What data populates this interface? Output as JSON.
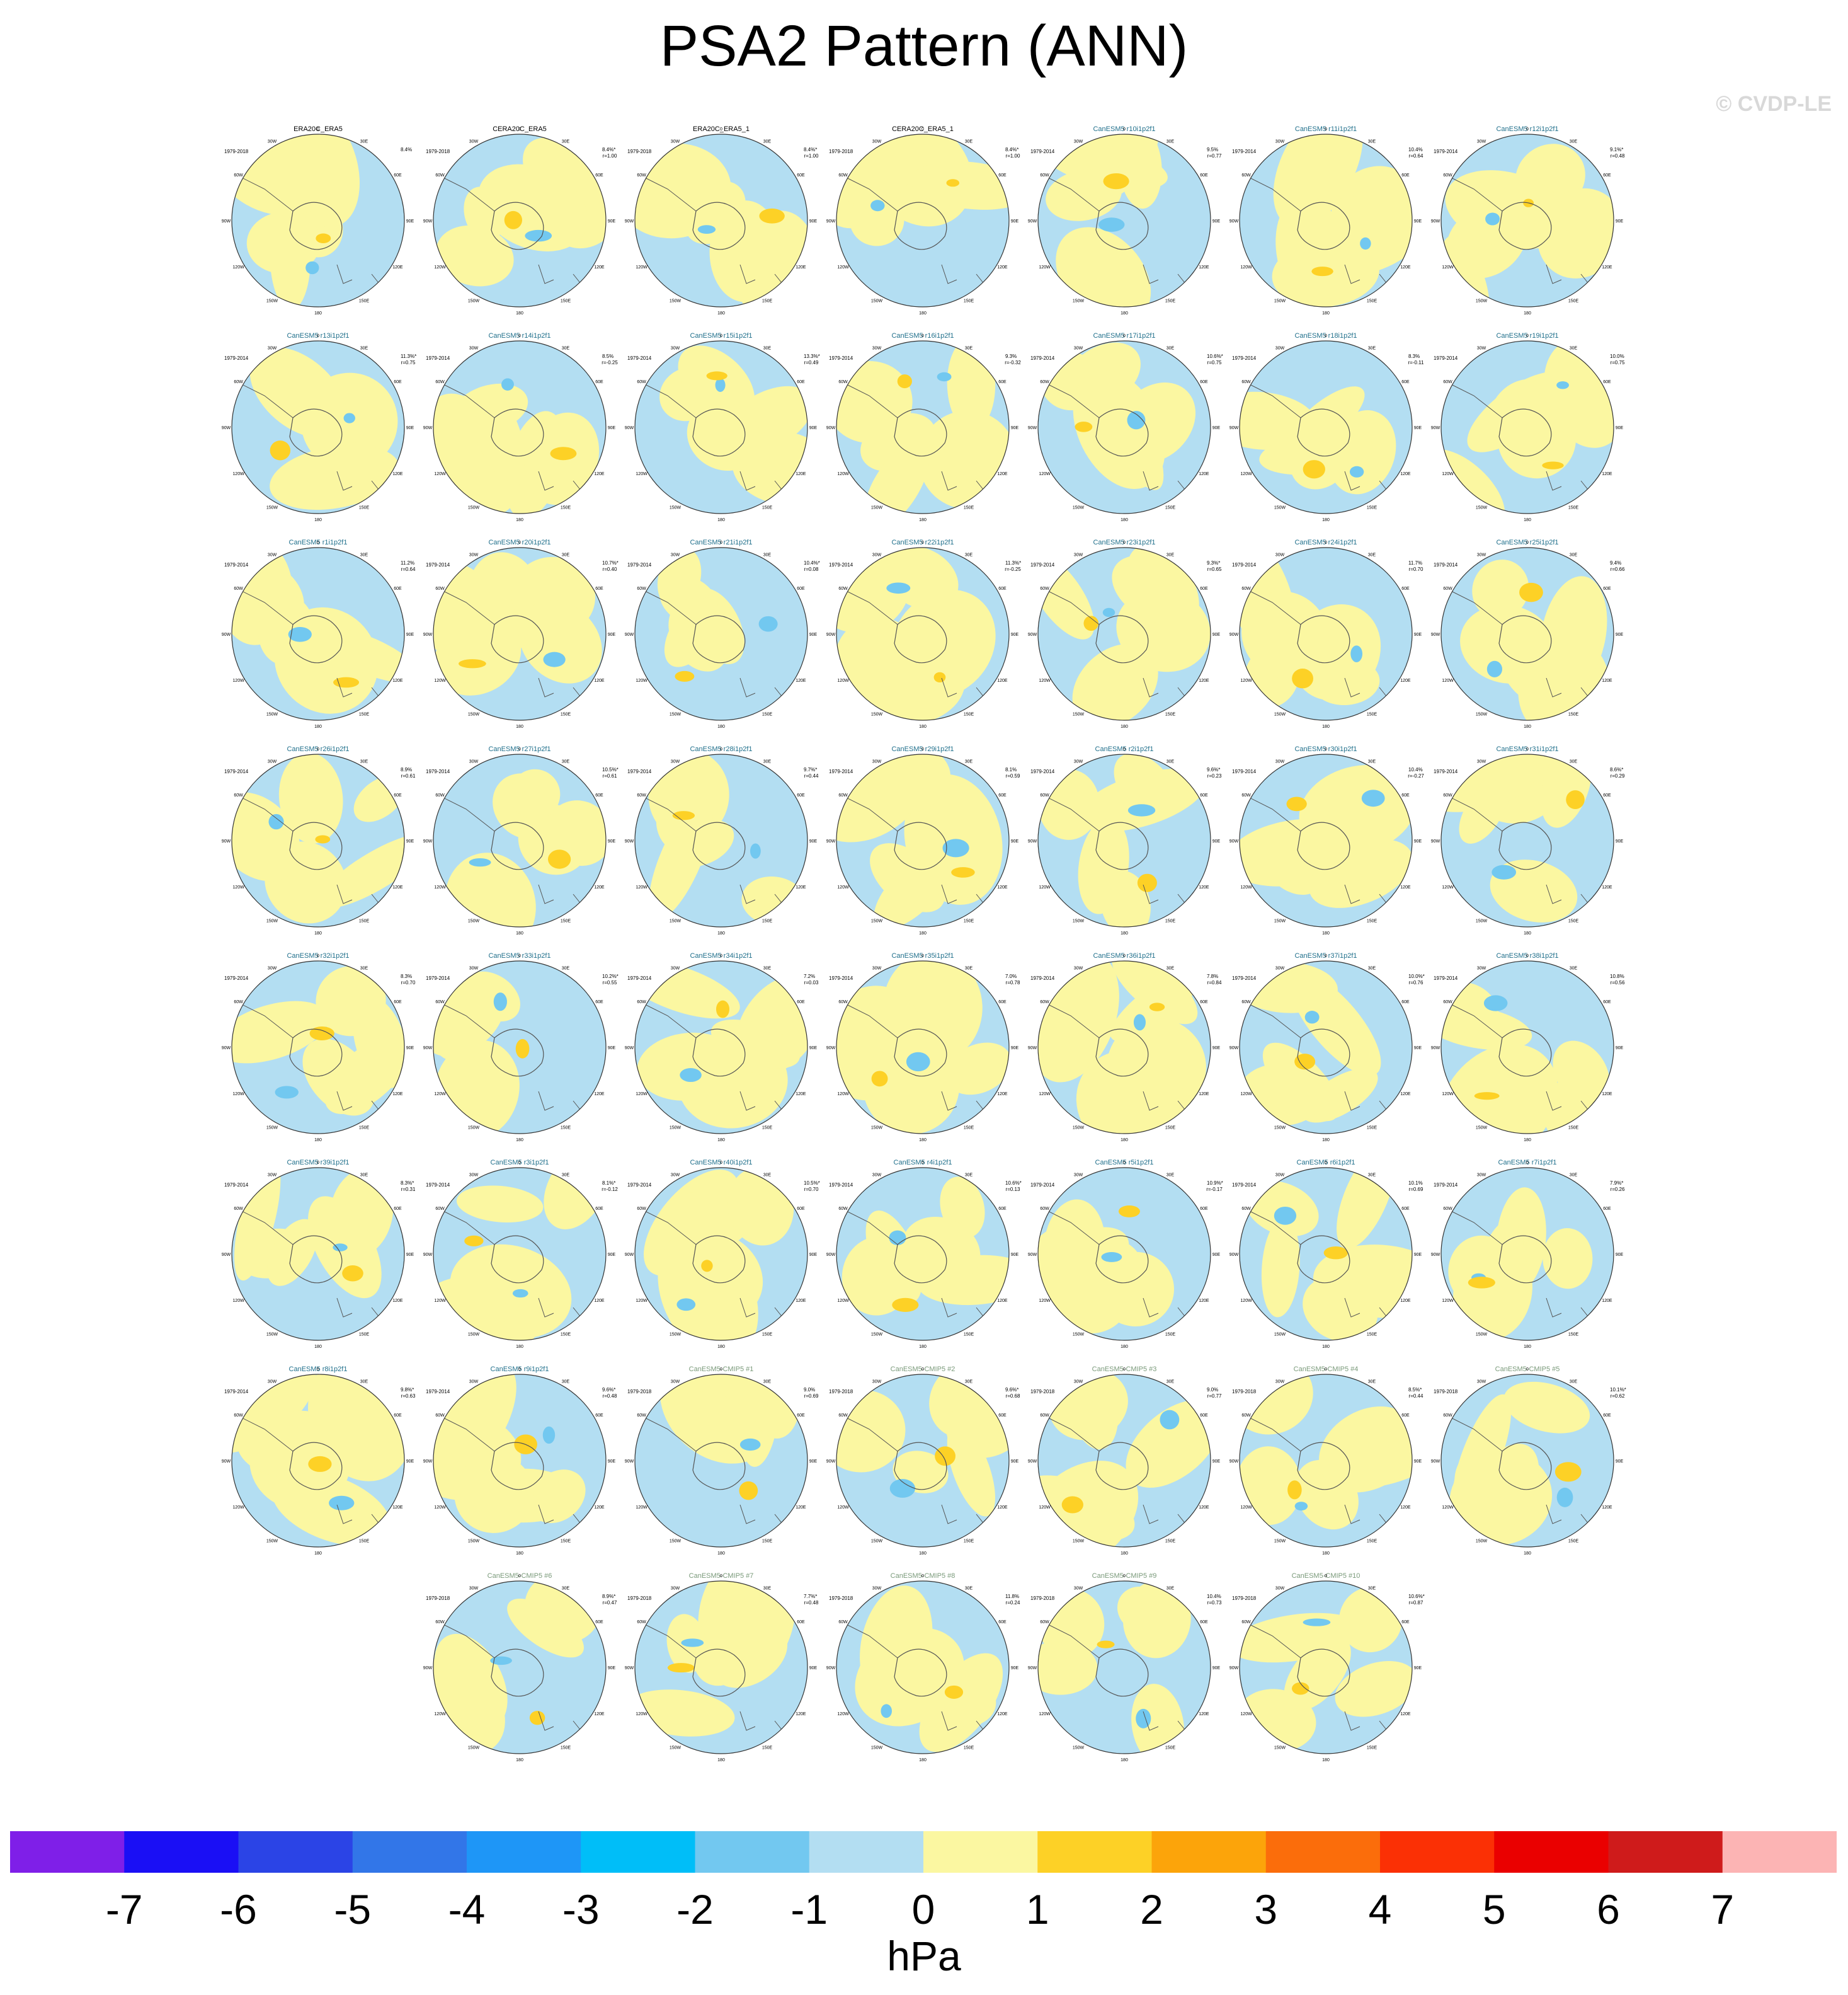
{
  "title": "PSA2 Pattern (ANN)",
  "watermark": "© CVDP-LE",
  "colorbar": {
    "units": "hPa",
    "ticks": [
      "-7",
      "-6",
      "-5",
      "-4",
      "-3",
      "-2",
      "-1",
      "0",
      "1",
      "2",
      "3",
      "4",
      "5",
      "6",
      "7"
    ],
    "colors": [
      "#7f1fe8",
      "#1a0ff5",
      "#2b44e6",
      "#3276e8",
      "#1e96f7",
      "#00bef8",
      "#72c8f0",
      "#b3def2",
      "#fbf7a1",
      "#fdd126",
      "#fca40a",
      "#fb6d0b",
      "#fb3005",
      "#ea0000",
      "#cf1b1b",
      "#fcb4b4"
    ]
  },
  "map_labels": {
    "lon": [
      "0",
      "30E",
      "60E",
      "90E",
      "120E",
      "150E",
      "180",
      "150W",
      "120W",
      "90W",
      "60W",
      "30W"
    ]
  },
  "chart_data": {
    "type": "heatmap",
    "description_free": true,
    "panels": [
      {
        "name": "ERA20C_ERA5",
        "period": "1979-2018",
        "pct": "8.4%",
        "r": "",
        "obs": true
      },
      {
        "name": "CERA20C_ERA5",
        "period": "1979-2018",
        "pct": "8.4%*",
        "r": "r=1.00",
        "obs": true
      },
      {
        "name": "ERA20C_ERA5_1",
        "period": "1979-2018",
        "pct": "8.4%*",
        "r": "r=1.00",
        "obs": true
      },
      {
        "name": "CERA20C_ERA5_1",
        "period": "1979-2018",
        "pct": "8.4%*",
        "r": "r=1.00",
        "obs": true
      },
      {
        "name": "CanESM5 r10i1p2f1",
        "period": "1979-2014",
        "pct": "9.5%",
        "r": "r=0.77"
      },
      {
        "name": "CanESM5 r11i1p2f1",
        "period": "1979-2014",
        "pct": "10.4%",
        "r": "r=0.64"
      },
      {
        "name": "CanESM5 r12i1p2f1",
        "period": "1979-2014",
        "pct": "9.1%*",
        "r": "r=0.48"
      },
      {
        "name": "CanESM5 r13i1p2f1",
        "period": "1979-2014",
        "pct": "11.3%*",
        "r": "r=0.75"
      },
      {
        "name": "CanESM5 r14i1p2f1",
        "period": "1979-2014",
        "pct": "8.5%",
        "r": "r=-0.25"
      },
      {
        "name": "CanESM5 r15i1p2f1",
        "period": "1979-2014",
        "pct": "13.3%*",
        "r": "r=0.49"
      },
      {
        "name": "CanESM5 r16i1p2f1",
        "period": "1979-2014",
        "pct": "9.3%",
        "r": "r=-0.32"
      },
      {
        "name": "CanESM5 r17i1p2f1",
        "period": "1979-2014",
        "pct": "10.6%*",
        "r": "r=0.75"
      },
      {
        "name": "CanESM5 r18i1p2f1",
        "period": "1979-2014",
        "pct": "8.3%",
        "r": "r=-0.11"
      },
      {
        "name": "CanESM5 r19i1p2f1",
        "period": "1979-2014",
        "pct": "10.0%",
        "r": "r=0.75"
      },
      {
        "name": "CanESM5 r1i1p2f1",
        "period": "1979-2014",
        "pct": "11.2%",
        "r": "r=0.64"
      },
      {
        "name": "CanESM5 r20i1p2f1",
        "period": "1979-2014",
        "pct": "10.7%*",
        "r": "r=0.40"
      },
      {
        "name": "CanESM5 r21i1p2f1",
        "period": "1979-2014",
        "pct": "10.4%*",
        "r": "r=0.08"
      },
      {
        "name": "CanESM5 r22i1p2f1",
        "period": "1979-2014",
        "pct": "11.3%*",
        "r": "r=-0.25"
      },
      {
        "name": "CanESM5 r23i1p2f1",
        "period": "1979-2014",
        "pct": "9.3%*",
        "r": "r=0.65"
      },
      {
        "name": "CanESM5 r24i1p2f1",
        "period": "1979-2014",
        "pct": "11.7%",
        "r": "r=0.70"
      },
      {
        "name": "CanESM5 r25i1p2f1",
        "period": "1979-2014",
        "pct": "9.4%",
        "r": "r=0.66"
      },
      {
        "name": "CanESM5 r26i1p2f1",
        "period": "1979-2014",
        "pct": "8.9%",
        "r": "r=0.61"
      },
      {
        "name": "CanESM5 r27i1p2f1",
        "period": "1979-2014",
        "pct": "10.5%*",
        "r": "r=0.61"
      },
      {
        "name": "CanESM5 r28i1p2f1",
        "period": "1979-2014",
        "pct": "9.7%*",
        "r": "r=0.44"
      },
      {
        "name": "CanESM5 r29i1p2f1",
        "period": "1979-2014",
        "pct": "8.1%",
        "r": "r=0.59"
      },
      {
        "name": "CanESM5 r2i1p2f1",
        "period": "1979-2014",
        "pct": "9.6%*",
        "r": "r=0.23"
      },
      {
        "name": "CanESM5 r30i1p2f1",
        "period": "1979-2014",
        "pct": "10.4%",
        "r": "r=-0.27"
      },
      {
        "name": "CanESM5 r31i1p2f1",
        "period": "1979-2014",
        "pct": "8.6%*",
        "r": "r=0.29"
      },
      {
        "name": "CanESM5 r32i1p2f1",
        "period": "1979-2014",
        "pct": "8.3%",
        "r": "r=0.70"
      },
      {
        "name": "CanESM5 r33i1p2f1",
        "period": "1979-2014",
        "pct": "10.2%*",
        "r": "r=0.55"
      },
      {
        "name": "CanESM5 r34i1p2f1",
        "period": "1979-2014",
        "pct": "7.2%",
        "r": "r=0.03"
      },
      {
        "name": "CanESM5 r35i1p2f1",
        "period": "1979-2014",
        "pct": "7.0%",
        "r": "r=0.78"
      },
      {
        "name": "CanESM5 r36i1p2f1",
        "period": "1979-2014",
        "pct": "7.8%",
        "r": "r=0.84"
      },
      {
        "name": "CanESM5 r37i1p2f1",
        "period": "1979-2014",
        "pct": "10.0%*",
        "r": "r=0.76"
      },
      {
        "name": "CanESM5 r38i1p2f1",
        "period": "1979-2014",
        "pct": "10.8%",
        "r": "r=0.56"
      },
      {
        "name": "CanESM5 r39i1p2f1",
        "period": "1979-2014",
        "pct": "8.3%*",
        "r": "r=0.31"
      },
      {
        "name": "CanESM5 r3i1p2f1",
        "period": "1979-2014",
        "pct": "8.1%*",
        "r": "r=-0.12"
      },
      {
        "name": "CanESM5 r40i1p2f1",
        "period": "1979-2014",
        "pct": "10.5%*",
        "r": "r=0.70"
      },
      {
        "name": "CanESM5 r4i1p2f1",
        "period": "1979-2014",
        "pct": "10.6%*",
        "r": "r=0.13"
      },
      {
        "name": "CanESM5 r5i1p2f1",
        "period": "1979-2014",
        "pct": "10.9%*",
        "r": "r=-0.17"
      },
      {
        "name": "CanESM5 r6i1p2f1",
        "period": "1979-2014",
        "pct": "10.1%",
        "r": "r=0.69"
      },
      {
        "name": "CanESM5 r7i1p2f1",
        "period": "1979-2014",
        "pct": "7.9%*",
        "r": "r=0.26"
      },
      {
        "name": "CanESM5 r8i1p2f1",
        "period": "1979-2014",
        "pct": "9.8%*",
        "r": "r=0.63"
      },
      {
        "name": "CanESM5 r9i1p2f1",
        "period": "1979-2014",
        "pct": "9.6%*",
        "r": "r=0.48"
      },
      {
        "name": "CanESM5-CMIP5 #1",
        "period": "1979-2018",
        "pct": "9.0%",
        "r": "r=0.69",
        "cmip5": true
      },
      {
        "name": "CanESM5-CMIP5 #2",
        "period": "1979-2018",
        "pct": "9.6%*",
        "r": "r=0.68",
        "cmip5": true
      },
      {
        "name": "CanESM5-CMIP5 #3",
        "period": "1979-2018",
        "pct": "9.0%",
        "r": "r=0.77",
        "cmip5": true
      },
      {
        "name": "CanESM5-CMIP5 #4",
        "period": "1979-2018",
        "pct": "8.5%*",
        "r": "r=0.44",
        "cmip5": true
      },
      {
        "name": "CanESM5-CMIP5 #5",
        "period": "1979-2018",
        "pct": "10.1%*",
        "r": "r=0.62",
        "cmip5": true
      },
      {
        "name": "CanESM5-CMIP5 #6",
        "period": "1979-2018",
        "pct": "8.9%*",
        "r": "r=0.47",
        "cmip5": true
      },
      {
        "name": "CanESM5-CMIP5 #7",
        "period": "1979-2018",
        "pct": "7.7%*",
        "r": "r=0.48",
        "cmip5": true
      },
      {
        "name": "CanESM5-CMIP5 #8",
        "period": "1979-2018",
        "pct": "11.8%",
        "r": "r=0.24",
        "cmip5": true
      },
      {
        "name": "CanESM5-CMIP5 #9",
        "period": "1979-2018",
        "pct": "10.4%",
        "r": "r=0.73",
        "cmip5": true
      },
      {
        "name": "CanESM5-CMIP5 #10",
        "period": "1979-2018",
        "pct": "10.6%*",
        "r": "r=0.87",
        "cmip5": true
      }
    ]
  }
}
